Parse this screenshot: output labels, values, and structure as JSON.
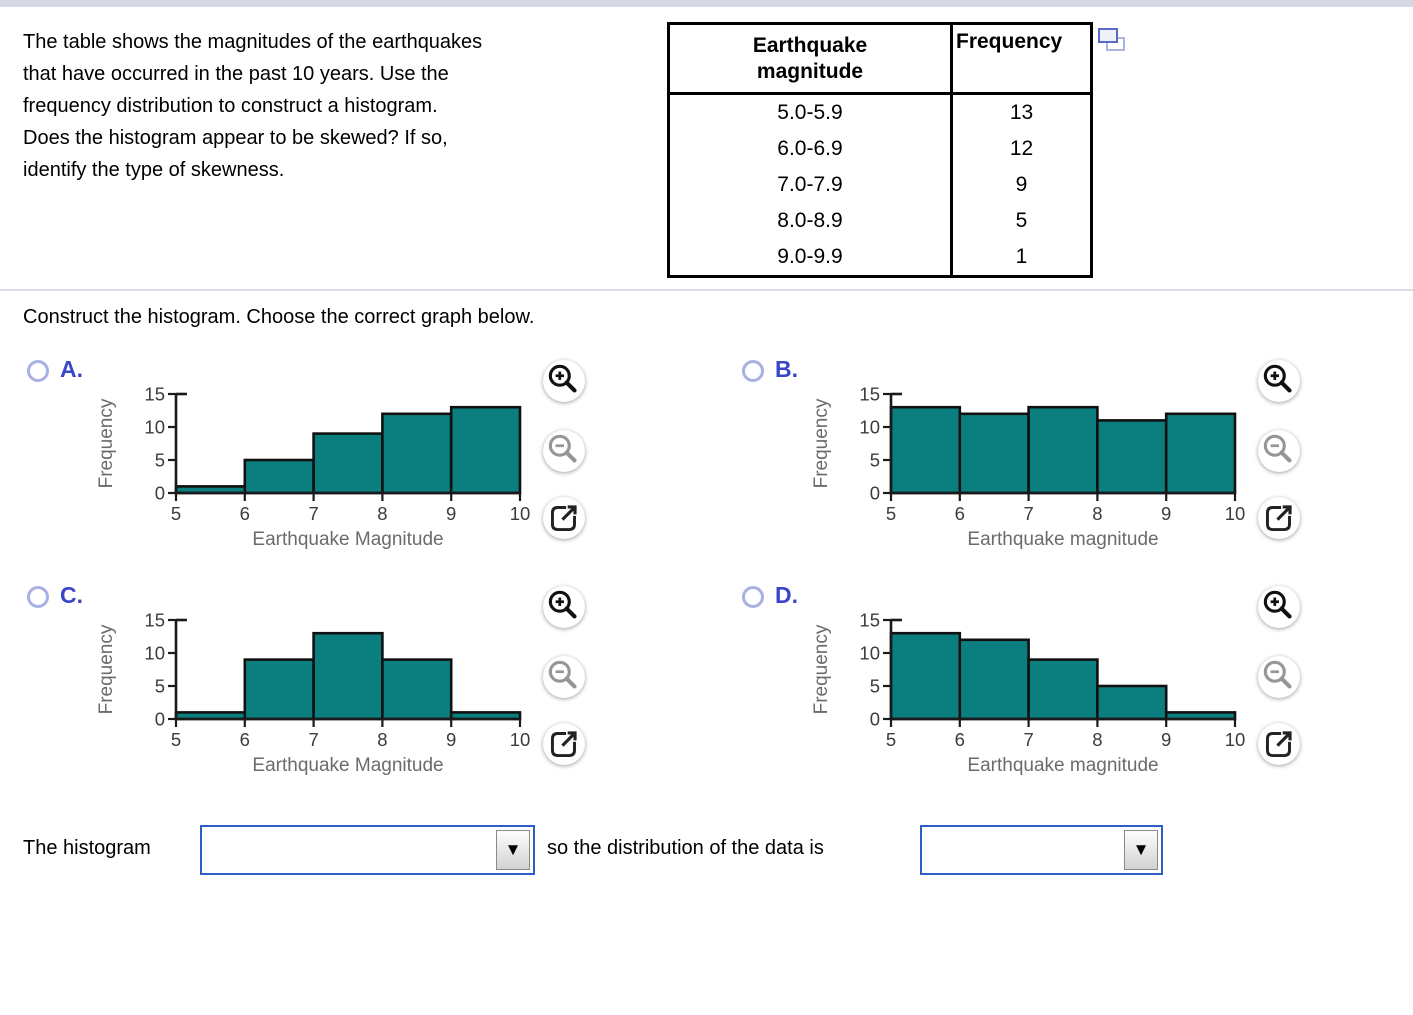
{
  "question_lines": [
    "The table shows the magnitudes of the earthquakes",
    "that have occurred in the past 10 years. Use the",
    "frequency distribution to construct a histogram.",
    "Does the histogram appear to be skewed? If so,",
    "identify the type of skewness."
  ],
  "table": {
    "magnitude_header": "Earthquake\nmagnitude",
    "frequency_header": "Frequency",
    "rows": [
      {
        "range": "5.0-5.9",
        "freq": "13"
      },
      {
        "range": "6.0-6.9",
        "freq": "12"
      },
      {
        "range": "7.0-7.9",
        "freq": "9"
      },
      {
        "range": "8.0-8.9",
        "freq": "5"
      },
      {
        "range": "9.0-9.9",
        "freq": "1"
      }
    ]
  },
  "prompt": "Construct the histogram. Choose the correct graph below.",
  "options": [
    {
      "letter": "A."
    },
    {
      "letter": "B."
    },
    {
      "letter": "C."
    },
    {
      "letter": "D."
    }
  ],
  "axes": {
    "xlim": [
      5,
      10
    ],
    "x_ticks": [
      "5",
      "6",
      "7",
      "8",
      "9",
      "10"
    ],
    "ylim": [
      0,
      15
    ],
    "y_ticks": [
      "0",
      "5",
      "10",
      "15"
    ]
  },
  "chart_data": [
    {
      "type": "bar",
      "title": "Option A histogram",
      "categories": [
        "5.0-5.9",
        "6.0-6.9",
        "7.0-7.9",
        "8.0-8.9",
        "9.0-9.9"
      ],
      "values": [
        1,
        5,
        9,
        12,
        13
      ],
      "xlabel": "Earthquake Magnitude",
      "ylabel": "Frequency",
      "ylim": [
        0,
        15
      ],
      "x_range": [
        5,
        10
      ]
    },
    {
      "type": "bar",
      "title": "Option B histogram",
      "categories": [
        "5.0-5.9",
        "6.0-6.9",
        "7.0-7.9",
        "8.0-8.9",
        "9.0-9.9"
      ],
      "values": [
        13,
        12,
        13,
        11,
        12
      ],
      "xlabel": "Earthquake magnitude",
      "ylabel": "Frequency",
      "ylim": [
        0,
        15
      ],
      "x_range": [
        5,
        10
      ]
    },
    {
      "type": "bar",
      "title": "Option C histogram",
      "categories": [
        "5.0-5.9",
        "6.0-6.9",
        "7.0-7.9",
        "8.0-8.9",
        "9.0-9.9"
      ],
      "values": [
        1,
        9,
        13,
        9,
        1
      ],
      "xlabel": "Earthquake Magnitude",
      "ylabel": "Frequency",
      "ylim": [
        0,
        15
      ],
      "x_range": [
        5,
        10
      ]
    },
    {
      "type": "bar",
      "title": "Option D histogram",
      "categories": [
        "5.0-5.9",
        "6.0-6.9",
        "7.0-7.9",
        "8.0-8.9",
        "9.0-9.9"
      ],
      "values": [
        13,
        12,
        9,
        5,
        1
      ],
      "xlabel": "Earthquake magnitude",
      "ylabel": "Frequency",
      "ylim": [
        0,
        15
      ],
      "x_range": [
        5,
        10
      ]
    }
  ],
  "icons": {
    "copy": "copy-table (two overlapping rectangles)",
    "zoom_in": "magnifier with plus",
    "zoom_out": "magnifier with minus",
    "external": "open graph in new window (square with arrow)",
    "dropdown_arrow": "▼"
  },
  "answer": {
    "prefix": "The histogram",
    "connector": "so the distribution of the data is",
    "dropdown1_value": "",
    "dropdown2_value": ""
  },
  "colors": {
    "bar_fill": "#0b7f80",
    "bar_stroke": "#111111",
    "axis": "#1a1a1a",
    "tick_label": "#3c3c3c",
    "axis_title": "#6b6b6b",
    "option_letter": "#3a46c8",
    "radio_border": "#a9b0e2",
    "dropdown_border": "#2a5fc8",
    "copy_icon_front": "#5a68c8",
    "copy_icon_back": "#aab4e4",
    "top_bar": "#d5d7e3",
    "divider": "#d9dde6"
  }
}
